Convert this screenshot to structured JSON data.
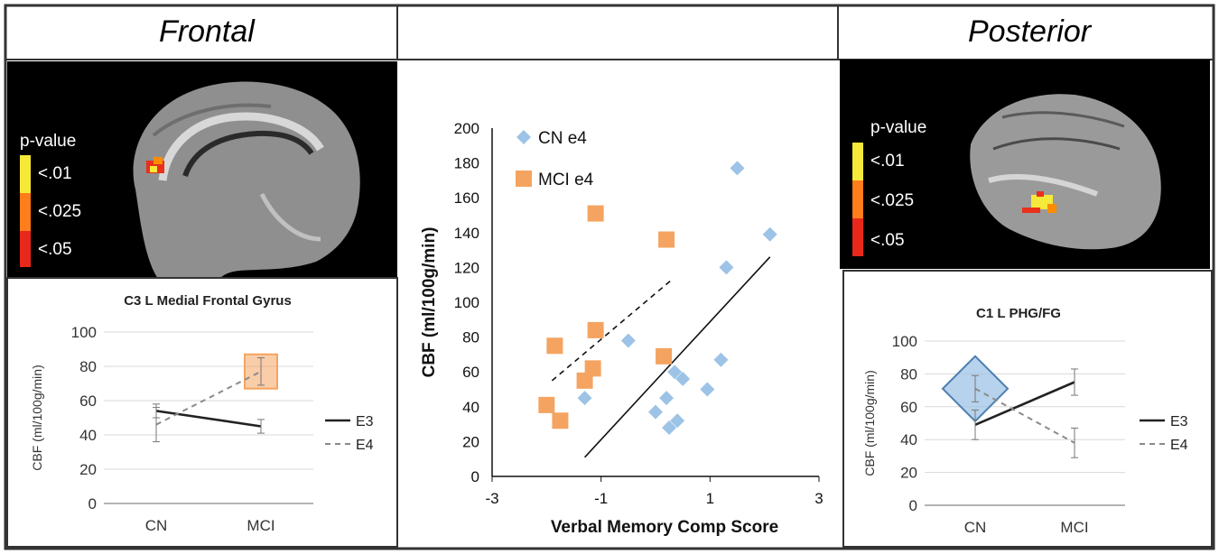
{
  "titles": {
    "left": "Frontal",
    "right": "Posterior"
  },
  "legend_scale": {
    "title": "p-value",
    "levels": [
      "<.01",
      "<.025",
      "<.05"
    ]
  },
  "chart_data": [
    {
      "type": "line",
      "title": "C3 L Medial Frontal Gyrus",
      "ylabel": "CBF (ml/100g/min)",
      "xlabel": "",
      "categories": [
        "CN",
        "MCI"
      ],
      "ylim": [
        0,
        100
      ],
      "yticks": [
        0,
        20,
        40,
        60,
        80,
        100
      ],
      "series": [
        {
          "name": "E3",
          "values": [
            54,
            45
          ],
          "err": [
            4,
            4
          ],
          "style": "solid"
        },
        {
          "name": "E4",
          "values": [
            46,
            77
          ],
          "err": [
            10,
            8
          ],
          "style": "dashed"
        }
      ],
      "highlight": {
        "shape": "square",
        "series": "E4",
        "category": "MCI",
        "color": "#f4a460"
      }
    },
    {
      "type": "scatter",
      "title": "",
      "xlabel": "Verbal Memory Comp Score",
      "ylabel": "CBF (ml/100g/min)",
      "xlim": [
        -3,
        3
      ],
      "ylim": [
        0,
        200
      ],
      "xticks": [
        -3,
        -1,
        1,
        3
      ],
      "yticks": [
        0,
        20,
        40,
        60,
        80,
        100,
        120,
        140,
        160,
        180,
        200
      ],
      "legend_position": "top-left",
      "series": [
        {
          "name": "CN e4",
          "marker": "diamond",
          "color": "#9dc3e6",
          "points": [
            [
              1.5,
              177
            ],
            [
              2.1,
              139
            ],
            [
              1.3,
              120
            ],
            [
              -0.5,
              78
            ],
            [
              1.2,
              67
            ],
            [
              -1.3,
              45
            ],
            [
              0.0,
              37
            ],
            [
              0.2,
              45
            ],
            [
              0.35,
              60
            ],
            [
              0.5,
              56
            ],
            [
              0.95,
              50
            ],
            [
              0.25,
              28
            ],
            [
              0.4,
              32
            ]
          ],
          "trend": [
            [
              -1.3,
              11
            ],
            [
              2.1,
              126
            ]
          ]
        },
        {
          "name": "MCI e4",
          "marker": "square",
          "color": "#f4a460",
          "points": [
            [
              -1.1,
              151
            ],
            [
              0.2,
              136
            ],
            [
              -1.85,
              75
            ],
            [
              -1.1,
              84
            ],
            [
              -1.15,
              62
            ],
            [
              -1.3,
              55
            ],
            [
              0.15,
              69
            ],
            [
              -2.0,
              41
            ],
            [
              -1.75,
              32
            ]
          ],
          "trend": [
            [
              -1.9,
              55
            ],
            [
              0.3,
              113
            ]
          ]
        }
      ]
    },
    {
      "type": "line",
      "title": "C1 L PHG/FG",
      "ylabel": "CBF (ml/100g/min)",
      "xlabel": "",
      "categories": [
        "CN",
        "MCI"
      ],
      "ylim": [
        0,
        100
      ],
      "yticks": [
        0,
        20,
        40,
        60,
        80,
        100
      ],
      "series": [
        {
          "name": "E3",
          "values": [
            49,
            75
          ],
          "err": [
            9,
            8
          ],
          "style": "solid"
        },
        {
          "name": "E4",
          "values": [
            71,
            38
          ],
          "err": [
            8,
            9
          ],
          "style": "dashed"
        }
      ],
      "highlight": {
        "shape": "diamond",
        "series": "E4",
        "category": "CN",
        "color": "#9dc3e6"
      }
    }
  ]
}
